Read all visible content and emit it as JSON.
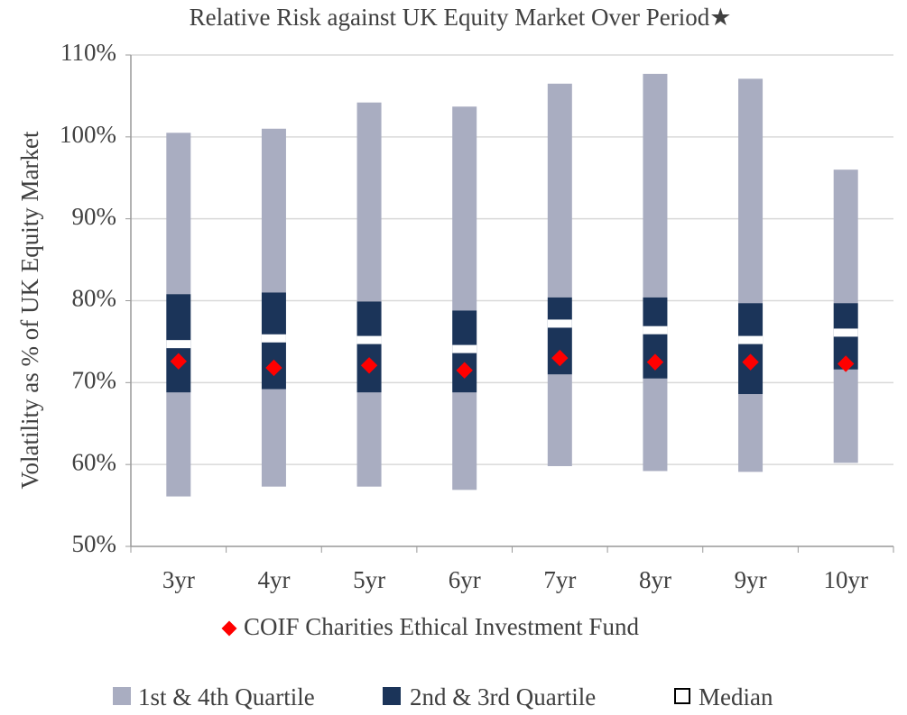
{
  "chart_data": {
    "type": "range-box",
    "title": "Relative Risk against UK Equity Market Over Period★",
    "y_label": "Volatility as % of UK Equity Market",
    "categories": [
      "3yr",
      "4yr",
      "5yr",
      "6yr",
      "7yr",
      "8yr",
      "9yr",
      "10yr"
    ],
    "low": [
      56.1,
      57.3,
      57.3,
      56.9,
      59.8,
      59.2,
      59.1,
      60.2
    ],
    "q1": [
      68.8,
      69.2,
      68.8,
      68.8,
      71.0,
      70.5,
      68.6,
      71.6
    ],
    "median": [
      74.7,
      75.4,
      75.2,
      74.1,
      77.2,
      76.4,
      75.2,
      76.1
    ],
    "q3": [
      80.8,
      81.0,
      79.9,
      78.8,
      80.4,
      80.4,
      79.7,
      79.7
    ],
    "high": [
      100.5,
      101.0,
      104.2,
      103.7,
      106.5,
      107.7,
      107.1,
      96.0
    ],
    "outer_name": "1st & 4th Quartile",
    "outer_color": "#a9adc1",
    "inner_name": "2nd & 3rd Quartile",
    "inner_color": "#1b3459",
    "median_name": "Median",
    "median_color": "#ffffff",
    "fund": {
      "name": "COIF Charities Ethical Investment Fund",
      "color": "#ff0000",
      "values": [
        72.6,
        71.8,
        72.1,
        71.5,
        73.0,
        72.5,
        72.5,
        72.3
      ]
    },
    "ylim": [
      50,
      110
    ],
    "yticks": [
      {
        "value": 50,
        "label": "50%"
      },
      {
        "value": 60,
        "label": "60%"
      },
      {
        "value": 70,
        "label": "70%"
      },
      {
        "value": 80,
        "label": "80%"
      },
      {
        "value": 90,
        "label": "90%"
      },
      {
        "value": 100,
        "label": "100%"
      },
      {
        "value": 110,
        "label": "110%"
      }
    ],
    "grid": true
  }
}
